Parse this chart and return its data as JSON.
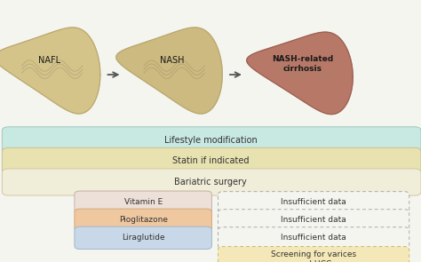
{
  "background_color": "#f5f5f0",
  "liver_labels": [
    "NAFL",
    "NASH",
    "NASH-related\ncirrhosis"
  ],
  "liver_colors_face": [
    "#d4c48a",
    "#ccba80",
    "#b87868"
  ],
  "liver_colors_edge": [
    "#b8a870",
    "#b8a870",
    "#9a6050"
  ],
  "full_bars": [
    {
      "label": "Lifestyle modification",
      "color": "#c8e8e2",
      "border": "#a0c8c0"
    },
    {
      "label": "Statin if indicated",
      "color": "#e8e2b0",
      "border": "#c8c090"
    },
    {
      "label": "Bariatric surgery",
      "color": "#f0edd8",
      "border": "#d0c8a8"
    }
  ],
  "nash_bars": [
    {
      "label": "Vitamin E",
      "color": "#ede0d8",
      "border": "#c8b0a8"
    },
    {
      "label": "Pioglitazone",
      "color": "#f0c8a0",
      "border": "#d0a878"
    },
    {
      "label": "Liraglutide",
      "color": "#c8d8e8",
      "border": "#a0b8c8"
    }
  ],
  "insuf_label": "Insufficient data",
  "insuf_border": "#aaaaaa",
  "screening_label": "Screening for varices\nand HCC",
  "screening_color": "#f5e8b8",
  "screening_border": "#c8b870",
  "text_color": "#333333",
  "arrow_color": "#555555",
  "bar_text_size": 7.0,
  "nash_text_size": 6.5
}
